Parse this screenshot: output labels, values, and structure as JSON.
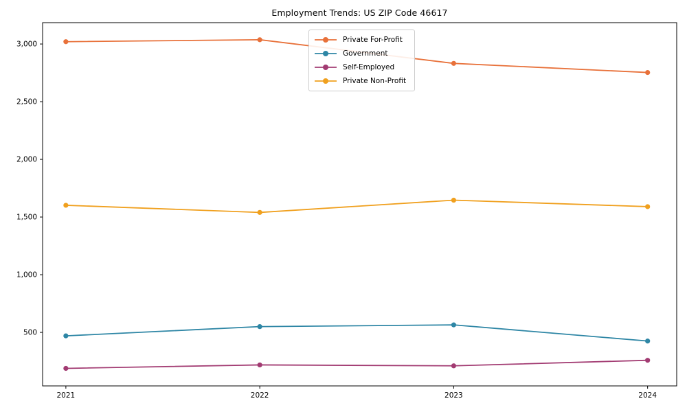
{
  "chart_data": {
    "type": "line",
    "title": "Employment Trends: US ZIP Code 46617",
    "xlabel": "",
    "ylabel": "",
    "x": [
      2021,
      2022,
      2023,
      2024
    ],
    "x_tick_labels": [
      "2021",
      "2022",
      "2023",
      "2024"
    ],
    "y_ticks": [
      500,
      1000,
      1500,
      2000,
      2500,
      3000
    ],
    "y_tick_labels": [
      "500",
      "1,000",
      "1,500",
      "2,000",
      "2,500",
      "3,000"
    ],
    "xlim": [
      2020.88,
      2024.15
    ],
    "ylim": [
      36,
      3185
    ],
    "grid": false,
    "marker": "circle",
    "axes_color": "#000000",
    "legend": {
      "position": "upper center-right",
      "border_color": "#cccccc",
      "background": "#ffffff",
      "entries": [
        "Private For-Profit",
        "Government",
        "Self-Employed",
        "Private Non-Profit"
      ]
    },
    "series": [
      {
        "name": "Private For-Profit",
        "color": "#E8713A",
        "values": [
          3020,
          3037,
          2832,
          2753
        ]
      },
      {
        "name": "Government",
        "color": "#2E86A5",
        "values": [
          470,
          550,
          565,
          425
        ]
      },
      {
        "name": "Self-Employed",
        "color": "#A23B72",
        "values": [
          188,
          218,
          210,
          258
        ]
      },
      {
        "name": "Private Non-Profit",
        "color": "#F0A01E",
        "values": [
          1602,
          1540,
          1646,
          1590
        ]
      }
    ]
  }
}
